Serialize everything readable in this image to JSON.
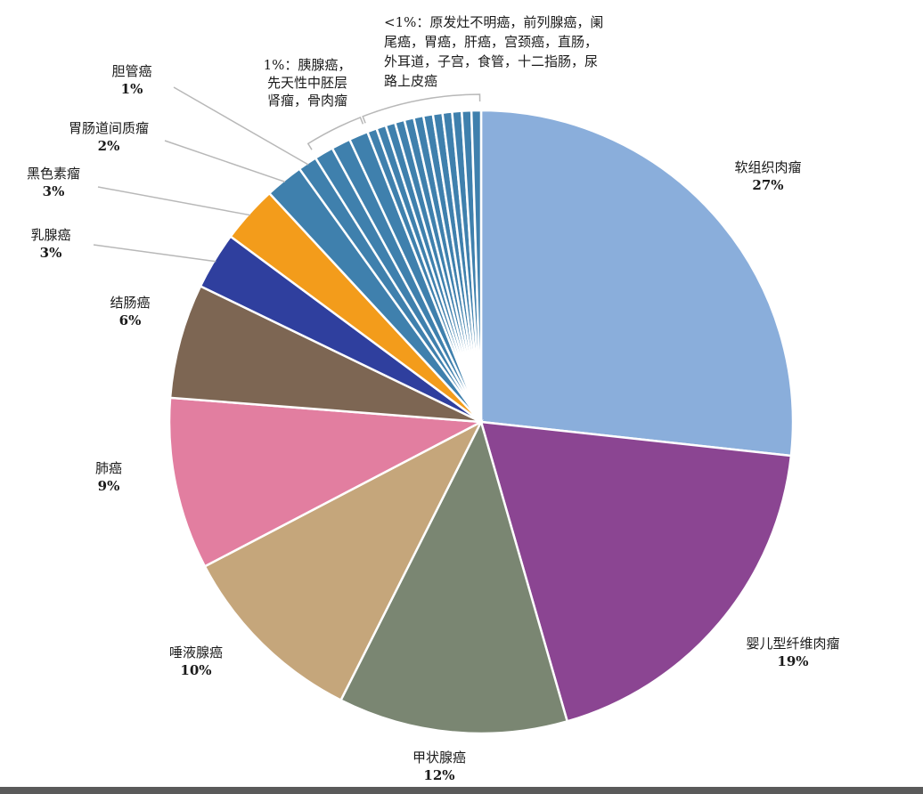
{
  "chart_data": {
    "type": "pie",
    "slices": [
      {
        "label": "软组织肉瘤",
        "pct_label": "27%",
        "value": 27,
        "color": "#8aaedb"
      },
      {
        "label": "婴儿型纤维肉瘤",
        "pct_label": "19%",
        "value": 19,
        "color": "#8b4592"
      },
      {
        "label": "甲状腺癌",
        "pct_label": "12%",
        "value": 12,
        "color": "#7a8672"
      },
      {
        "label": "唾液腺癌",
        "pct_label": "10%",
        "value": 10,
        "color": "#c5a67b"
      },
      {
        "label": "肺癌",
        "pct_label": "9%",
        "value": 9,
        "color": "#e27ea0"
      },
      {
        "label": "结肠癌",
        "pct_label": "6%",
        "value": 6,
        "color": "#7d6653"
      },
      {
        "label": "乳腺癌",
        "pct_label": "3%",
        "value": 3,
        "color": "#2f3f9e"
      },
      {
        "label": "黑色素瘤",
        "pct_label": "3%",
        "value": 3,
        "color": "#f39c1b"
      },
      {
        "label": "胃肠道间质瘤",
        "pct_label": "2%",
        "value": 2,
        "color": "#3f80ad"
      },
      {
        "label": "胆管癌",
        "pct_label": "1%",
        "value": 1,
        "color": "#3f80ad"
      },
      {
        "label": "胰腺癌",
        "value": 1,
        "color": "#3f80ad"
      },
      {
        "label": "先天性中胚层肾瘤",
        "value": 1,
        "color": "#3f80ad"
      },
      {
        "label": "骨肉瘤",
        "value": 1,
        "color": "#3f80ad"
      },
      {
        "label": "原发灶不明癌",
        "value": 0.5,
        "color": "#3f80ad"
      },
      {
        "label": "前列腺癌",
        "value": 0.5,
        "color": "#3f80ad"
      },
      {
        "label": "阑尾癌",
        "value": 0.5,
        "color": "#3f80ad"
      },
      {
        "label": "胃癌",
        "value": 0.5,
        "color": "#3f80ad"
      },
      {
        "label": "肝癌",
        "value": 0.5,
        "color": "#3f80ad"
      },
      {
        "label": "宫颈癌",
        "value": 0.5,
        "color": "#3f80ad"
      },
      {
        "label": "直肠",
        "value": 0.5,
        "color": "#3f80ad"
      },
      {
        "label": "外耳道",
        "value": 0.5,
        "color": "#3f80ad"
      },
      {
        "label": "子宫",
        "value": 0.5,
        "color": "#3f80ad"
      },
      {
        "label": "食管",
        "value": 0.5,
        "color": "#3f80ad"
      },
      {
        "label": "十二指肠",
        "value": 0.5,
        "color": "#3f80ad"
      },
      {
        "label": "尿路上皮癌",
        "value": 0.5,
        "color": "#3f80ad"
      }
    ],
    "group_labels": {
      "one_pct_lines": [
        "1%：胰腺癌，",
        "先天性中胚层",
        "肾瘤，骨肉瘤"
      ],
      "lt_one_pct_lines": [
        "<1%：原发灶不明癌，前列腺癌，阑",
        "尾癌，胃癌，肝癌，宫颈癌，直肠，",
        "外耳道，子宫，食管，十二指肠，尿",
        "路上皮癌"
      ]
    }
  }
}
